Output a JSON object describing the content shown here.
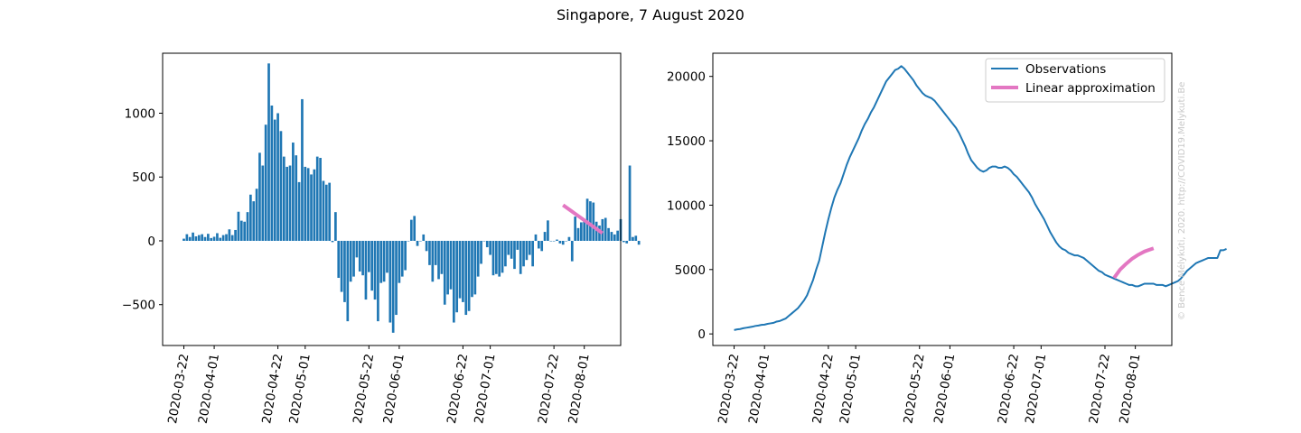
{
  "figure": {
    "title": "Singapore, 7 August 2020",
    "watermark": "© Bence Mélykúti, 2020. http://COVID19.Melykuti.Be"
  },
  "colors": {
    "observations": "#1f77b4",
    "approximation": "#e377c2"
  },
  "chart_data": [
    {
      "type": "bar",
      "title": "",
      "xlabel": "",
      "ylabel": "",
      "x_start": "2020-03-22",
      "x_ticks": [
        "2020-03-22",
        "2020-04-01",
        "2020-04-22",
        "2020-05-01",
        "2020-05-22",
        "2020-06-01",
        "2020-06-22",
        "2020-07-01",
        "2020-07-22",
        "2020-08-01"
      ],
      "x_range": [
        "2020-03-15",
        "2020-08-13"
      ],
      "y_ticks": [
        -500,
        0,
        500,
        1000
      ],
      "ylim": [
        -820,
        1470
      ],
      "grid": false,
      "series": [
        {
          "values": [
            17,
            52,
            30,
            65,
            35,
            45,
            52,
            30,
            55,
            22,
            32,
            60,
            24,
            45,
            52,
            90,
            45,
            85,
            228,
            158,
            150,
            225,
            362,
            310,
            408,
            690,
            590,
            910,
            1390,
            1060,
            950,
            1000,
            860,
            660,
            580,
            590,
            770,
            670,
            460,
            1110,
            580,
            570,
            520,
            560,
            660,
            650,
            470,
            440,
            455,
            -10,
            225,
            -290,
            -400,
            -480,
            -630,
            -320,
            -280,
            -130,
            -240,
            -270,
            -460,
            -245,
            -390,
            -460,
            -630,
            -330,
            -320,
            -250,
            -640,
            -720,
            -580,
            -330,
            -280,
            -230,
            0,
            165,
            195,
            -40,
            0,
            50,
            -80,
            -190,
            -320,
            -190,
            -300,
            -260,
            -500,
            -420,
            -380,
            -640,
            -560,
            -450,
            -480,
            -580,
            -550,
            -440,
            -420,
            -280,
            -180,
            0,
            -50,
            -110,
            -270,
            -260,
            -280,
            -250,
            -200,
            -110,
            -140,
            -220,
            -70,
            -260,
            -200,
            -150,
            -110,
            -200,
            50,
            -60,
            -80,
            70,
            160,
            0,
            0,
            10,
            -20,
            -30,
            0,
            30,
            -160,
            190,
            100,
            145,
            160,
            330,
            310,
            300,
            150,
            120,
            170,
            180,
            100,
            70,
            50,
            80,
            170,
            -10,
            -20,
            590,
            30,
            40,
            -30
          ]
        },
        {
          "name": "",
          "x": [
            "2020-07-25",
            "2020-08-07"
          ],
          "y": [
            280,
            60
          ]
        }
      ]
    },
    {
      "type": "line",
      "title": "",
      "xlabel": "",
      "ylabel": "",
      "x_start": "2020-03-22",
      "x_ticks": [
        "2020-03-22",
        "2020-04-01",
        "2020-04-22",
        "2020-05-01",
        "2020-05-22",
        "2020-06-01",
        "2020-06-22",
        "2020-07-01",
        "2020-07-22",
        "2020-08-01"
      ],
      "x_range": [
        "2020-03-15",
        "2020-08-13"
      ],
      "y_ticks": [
        0,
        5000,
        10000,
        15000,
        20000
      ],
      "ylim": [
        -900,
        21800
      ],
      "grid": false,
      "legend_position": "top-right",
      "series": [
        {
          "name": "Observations",
          "x_range": [
            "2020-03-22",
            "2020-08-07"
          ],
          "values": [
            300,
            350,
            380,
            440,
            480,
            520,
            560,
            620,
            650,
            700,
            720,
            780,
            820,
            860,
            960,
            1000,
            1100,
            1200,
            1400,
            1600,
            1800,
            2000,
            2300,
            2600,
            3000,
            3600,
            4200,
            5000,
            5700,
            6800,
            7900,
            8900,
            9800,
            10600,
            11200,
            11700,
            12400,
            13100,
            13700,
            14200,
            14700,
            15200,
            15800,
            16300,
            16700,
            17200,
            17600,
            18100,
            18600,
            19100,
            19600,
            19900,
            20200,
            20500,
            20600,
            20800,
            20600,
            20300,
            20000,
            19700,
            19300,
            19000,
            18700,
            18500,
            18400,
            18300,
            18100,
            17800,
            17500,
            17200,
            16900,
            16600,
            16300,
            16000,
            15600,
            15100,
            14600,
            14000,
            13500,
            13200,
            12900,
            12700,
            12600,
            12700,
            12900,
            13000,
            13000,
            12900,
            12900,
            13000,
            12900,
            12700,
            12400,
            12200,
            11900,
            11600,
            11300,
            11000,
            10600,
            10100,
            9700,
            9300,
            8900,
            8400,
            7900,
            7500,
            7100,
            6800,
            6600,
            6500,
            6300,
            6200,
            6100,
            6100,
            6000,
            5900,
            5700,
            5500,
            5300,
            5100,
            4900,
            4800,
            4600,
            4500,
            4400,
            4300,
            4200,
            4100,
            4000,
            3900,
            3800,
            3800,
            3700,
            3700,
            3800,
            3900,
            3900,
            3900,
            3900,
            3800,
            3800,
            3800,
            3700,
            3800,
            3900,
            4000,
            4100,
            4300,
            4600,
            4900,
            5100,
            5300,
            5500,
            5600,
            5700,
            5800,
            5900,
            5900,
            5900,
            5900,
            6500,
            6500,
            6600
          ]
        },
        {
          "name": "Linear approximation",
          "x": [
            "2020-07-25",
            "2020-07-27",
            "2020-07-29",
            "2020-07-31",
            "2020-08-02",
            "2020-08-04",
            "2020-08-07"
          ],
          "y": [
            4350,
            5000,
            5450,
            5850,
            6150,
            6400,
            6650
          ]
        }
      ]
    }
  ]
}
